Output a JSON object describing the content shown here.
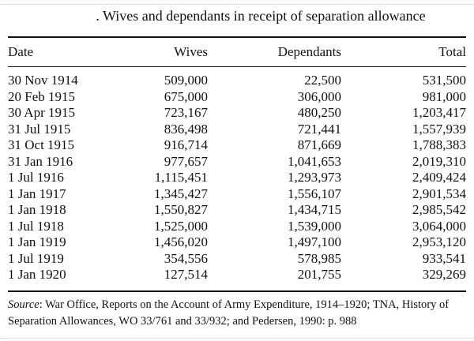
{
  "title": ". Wives and dependants in receipt of separation allowance",
  "table": {
    "headers": [
      "Date",
      "Wives",
      "Dependants",
      "Total"
    ],
    "rows": [
      [
        "30 Nov 1914",
        "509,000",
        "22,500",
        "531,500"
      ],
      [
        "20 Feb 1915",
        "675,000",
        "306,000",
        "981,000"
      ],
      [
        "30 Apr 1915",
        "723,167",
        "480,250",
        "1,203,417"
      ],
      [
        "31 Jul 1915",
        "836,498",
        "721,441",
        "1,557,939"
      ],
      [
        "31 Oct 1915",
        "916,714",
        "871,669",
        "1,788,383"
      ],
      [
        "31 Jan 1916",
        "977,657",
        "1,041,653",
        "2,019,310"
      ],
      [
        "1 Jul 1916",
        "1,115,451",
        "1,293,973",
        "2,409,424"
      ],
      [
        "1 Jan 1917",
        "1,345,427",
        "1,556,107",
        "2,901,534"
      ],
      [
        "1 Jan 1918",
        "1,550,827",
        "1,434,715",
        "2,985,542"
      ],
      [
        "1 Jul 1918",
        "1,525,000",
        "1,539,000",
        "3,064,000"
      ],
      [
        "1 Jan 1919",
        "1,456,020",
        "1,497,100",
        "2,953,120"
      ],
      [
        "1 Jul 1919",
        "354,556",
        "578,985",
        "933,541"
      ],
      [
        "1 Jan 1920",
        "127,514",
        "201,755",
        "329,269"
      ]
    ]
  },
  "source": {
    "label": "Source",
    "text": ": War Office, Reports on the Account of Army Expenditure, 1914–1920; TNA, History of Separation Allowances, WO 33/761 and 33/932; and Pedersen, 1990: p. 988"
  }
}
